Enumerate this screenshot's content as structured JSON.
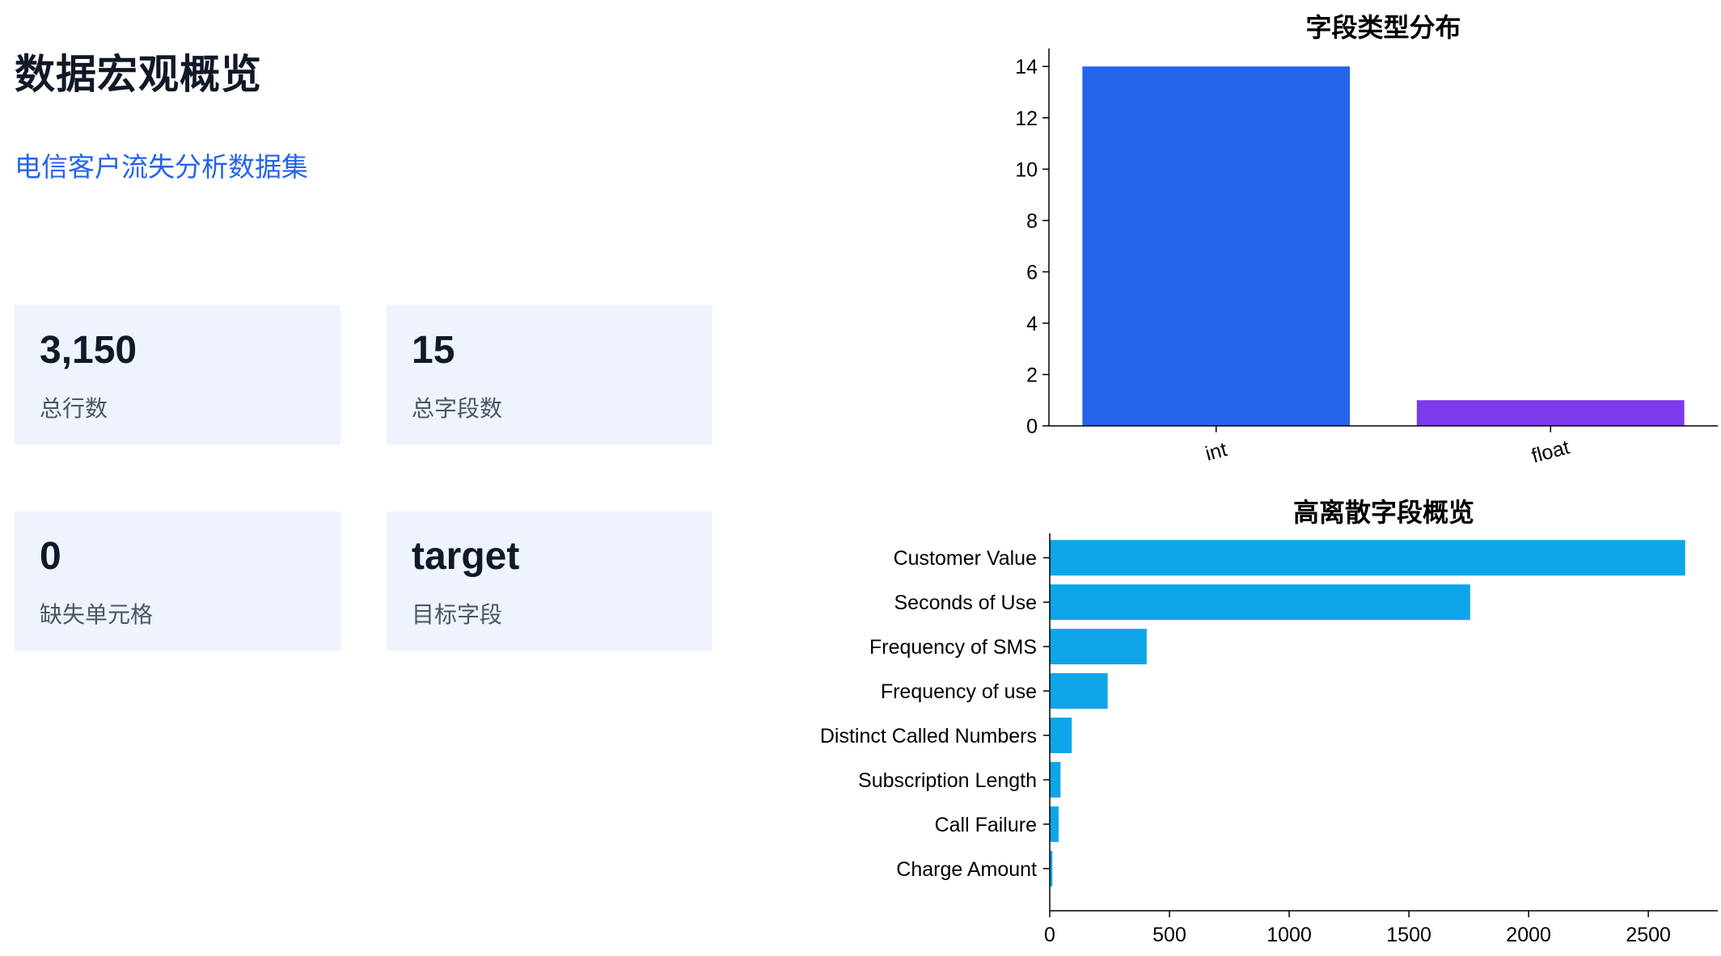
{
  "page": {
    "title": "数据宏观概览",
    "subtitle": "电信客户流失分析数据集"
  },
  "cards": [
    {
      "value": "3,150",
      "label": "总行数"
    },
    {
      "value": "15",
      "label": "总字段数"
    },
    {
      "value": "0",
      "label": "缺失单元格"
    },
    {
      "value": "target",
      "label": "目标字段"
    }
  ],
  "colors": {
    "int_bar": "#2563eb",
    "float_bar": "#7c3aed",
    "hbar": "#0ea5e9",
    "card_bg": "#eef3fd",
    "accent_text": "#2563eb"
  },
  "chart_data": [
    {
      "type": "bar",
      "title": "字段类型分布",
      "categories": [
        "int",
        "float"
      ],
      "values": [
        14,
        1
      ],
      "ylim": [
        0,
        14.7
      ],
      "yticks": [
        0,
        2,
        4,
        6,
        8,
        10,
        12,
        14
      ],
      "grid": false
    },
    {
      "type": "bar",
      "orientation": "horizontal",
      "title": "高离散字段概览",
      "categories": [
        "Customer Value",
        "Seconds of Use",
        "Frequency of SMS",
        "Frequency of use",
        "Distinct Called Numbers",
        "Subscription  Length",
        "Call  Failure",
        "Charge  Amount"
      ],
      "values": [
        2654,
        1756,
        405,
        242,
        92,
        45,
        37,
        11
      ],
      "xlim": [
        0,
        2790
      ],
      "xticks": [
        0,
        500,
        1000,
        1500,
        2000,
        2500
      ],
      "grid": false
    }
  ]
}
